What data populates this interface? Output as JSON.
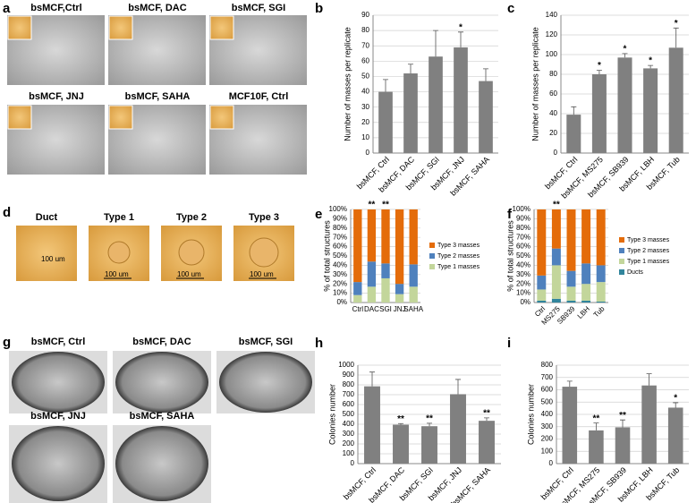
{
  "micrographs": {
    "panel": "a",
    "captions": [
      "bsMCF,Ctrl",
      "bsMCF, DAC",
      "bsMCF, SGI",
      "bsMCF, JNJ",
      "bsMCF, SAHA",
      "MCF10F, Ctrl"
    ]
  },
  "structures": {
    "panel": "d",
    "captions": [
      "Duct",
      "Type 1",
      "Type 2",
      "Type 3"
    ],
    "scale_labels": [
      "100 um",
      "100 um",
      "100 um",
      "100 um"
    ]
  },
  "dishes": {
    "panel": "g",
    "captions": [
      "bsMCF, Ctrl",
      "bsMCF, DAC",
      "bsMCF, SGI",
      "bsMCF, JNJ",
      "bsMCF, SAHA"
    ]
  },
  "chart_data": [
    {
      "type": "bar",
      "panel": "b",
      "ylabel": "Number of masses per replicate",
      "categories": [
        "bsMCF, Ctrl",
        "bsMCF, DAC",
        "bsMCF, SGI",
        "bsMCF, JNJ",
        "bsMCF, SAHA"
      ],
      "values": [
        40,
        52,
        63,
        69,
        47
      ],
      "errors": [
        8,
        6,
        17,
        10,
        8
      ],
      "annotations": [
        null,
        null,
        null,
        "*",
        null
      ],
      "color": "#808080",
      "ylim": [
        0,
        90
      ],
      "yticks": [
        0,
        10,
        20,
        30,
        40,
        50,
        60,
        70,
        80,
        90
      ],
      "grid": true
    },
    {
      "type": "bar",
      "panel": "c",
      "ylabel": "Number of masses per replicate",
      "categories": [
        "bsMCF, Ctrl",
        "bsMCF, MS275",
        "bsMCF, SB939",
        "bsMCF, LBH",
        "bsMCF, Tub"
      ],
      "values": [
        39,
        80,
        97,
        86,
        107
      ],
      "errors": [
        8,
        4,
        4,
        3,
        20
      ],
      "annotations": [
        null,
        "*",
        "*",
        "*",
        "*"
      ],
      "color": "#808080",
      "ylim": [
        0,
        140
      ],
      "yticks": [
        0,
        20,
        40,
        60,
        80,
        100,
        120,
        140
      ],
      "grid": true
    },
    {
      "type": "stacked_bar",
      "panel": "e",
      "ylabel": "% of total structures",
      "categories": [
        "Ctrl",
        "DAC",
        "SGI",
        "JNJ",
        "SAHA"
      ],
      "series": [
        {
          "name": "Type 1 masses",
          "color": "#c3d69b",
          "values": [
            8,
            17,
            26,
            9,
            17
          ]
        },
        {
          "name": "Type 2 masses",
          "color": "#4f81bd",
          "values": [
            14,
            27,
            16,
            11,
            24
          ]
        },
        {
          "name": "Type 3 masses",
          "color": "#e46c0a",
          "values": [
            78,
            56,
            58,
            80,
            59
          ]
        }
      ],
      "annotations": [
        null,
        "**",
        "**",
        null,
        null
      ],
      "legend": "right",
      "ylim": [
        0,
        100
      ],
      "yticks": [
        {
          "value": 0,
          "label": "0%"
        },
        {
          "value": 10,
          "label": "10%"
        },
        {
          "value": 20,
          "label": "20%"
        },
        {
          "value": 30,
          "label": "30%"
        },
        {
          "value": 40,
          "label": "40%"
        },
        {
          "value": 50,
          "label": "50%"
        },
        {
          "value": 60,
          "label": "60%"
        },
        {
          "value": 70,
          "label": "70%"
        },
        {
          "value": 80,
          "label": "80%"
        },
        {
          "value": 90,
          "label": "90%"
        },
        {
          "value": 100,
          "label": "100%"
        }
      ],
      "grid": true
    },
    {
      "type": "stacked_bar",
      "panel": "f",
      "ylabel": "% of total structures",
      "categories": [
        "Ctrl",
        "MS275",
        "SB939",
        "LBH",
        "Tub"
      ],
      "series": [
        {
          "name": "Ducts",
          "color": "#31859c",
          "values": [
            2,
            4,
            2,
            2,
            1
          ]
        },
        {
          "name": "Type 1 masses",
          "color": "#c3d69b",
          "values": [
            12,
            36,
            15,
            18,
            21
          ]
        },
        {
          "name": "Type 2 masses",
          "color": "#4f81bd",
          "values": [
            15,
            18,
            17,
            22,
            18
          ]
        },
        {
          "name": "Type 3 masses",
          "color": "#e46c0a",
          "values": [
            71,
            42,
            66,
            58,
            60
          ]
        }
      ],
      "annotations": [
        null,
        "**",
        null,
        null,
        null
      ],
      "legend": "right",
      "ylim": [
        0,
        100
      ],
      "yticks": [
        {
          "value": 0,
          "label": "0%"
        },
        {
          "value": 10,
          "label": "10%"
        },
        {
          "value": 20,
          "label": "20%"
        },
        {
          "value": 30,
          "label": "30%"
        },
        {
          "value": 40,
          "label": "40%"
        },
        {
          "value": 50,
          "label": "50%"
        },
        {
          "value": 60,
          "label": "60%"
        },
        {
          "value": 70,
          "label": "70%"
        },
        {
          "value": 80,
          "label": "80%"
        },
        {
          "value": 90,
          "label": "90%"
        },
        {
          "value": 100,
          "label": "100%"
        }
      ],
      "grid": true
    },
    {
      "type": "bar",
      "panel": "h",
      "ylabel": "Colonies number",
      "categories": [
        "bsMCF, Ctrl",
        "bsMCF, DAC",
        "bsMCF, SGI",
        "bsMCF, JNJ",
        "bsMCF, SAHA"
      ],
      "values": [
        785,
        395,
        380,
        705,
        435
      ],
      "errors": [
        145,
        12,
        30,
        150,
        30
      ],
      "annotations": [
        null,
        "**",
        "**",
        null,
        "**"
      ],
      "color": "#808080",
      "ylim": [
        0,
        1000
      ],
      "yticks": [
        0,
        100,
        200,
        300,
        400,
        500,
        600,
        700,
        800,
        900,
        1000
      ],
      "grid": true
    },
    {
      "type": "bar",
      "panel": "i",
      "ylabel": "Colonies number",
      "categories": [
        "bsMCF, Ctrl",
        "bsMCF, MS275",
        "bsMCF, SB939",
        "bsMCF, LBH",
        "bsMCF, Tub"
      ],
      "values": [
        625,
        270,
        295,
        635,
        455
      ],
      "errors": [
        45,
        60,
        60,
        95,
        40
      ],
      "annotations": [
        null,
        "**",
        "**",
        null,
        "*"
      ],
      "color": "#808080",
      "ylim": [
        0,
        800
      ],
      "yticks": [
        0,
        100,
        200,
        300,
        400,
        500,
        600,
        700,
        800
      ],
      "grid": true
    }
  ]
}
